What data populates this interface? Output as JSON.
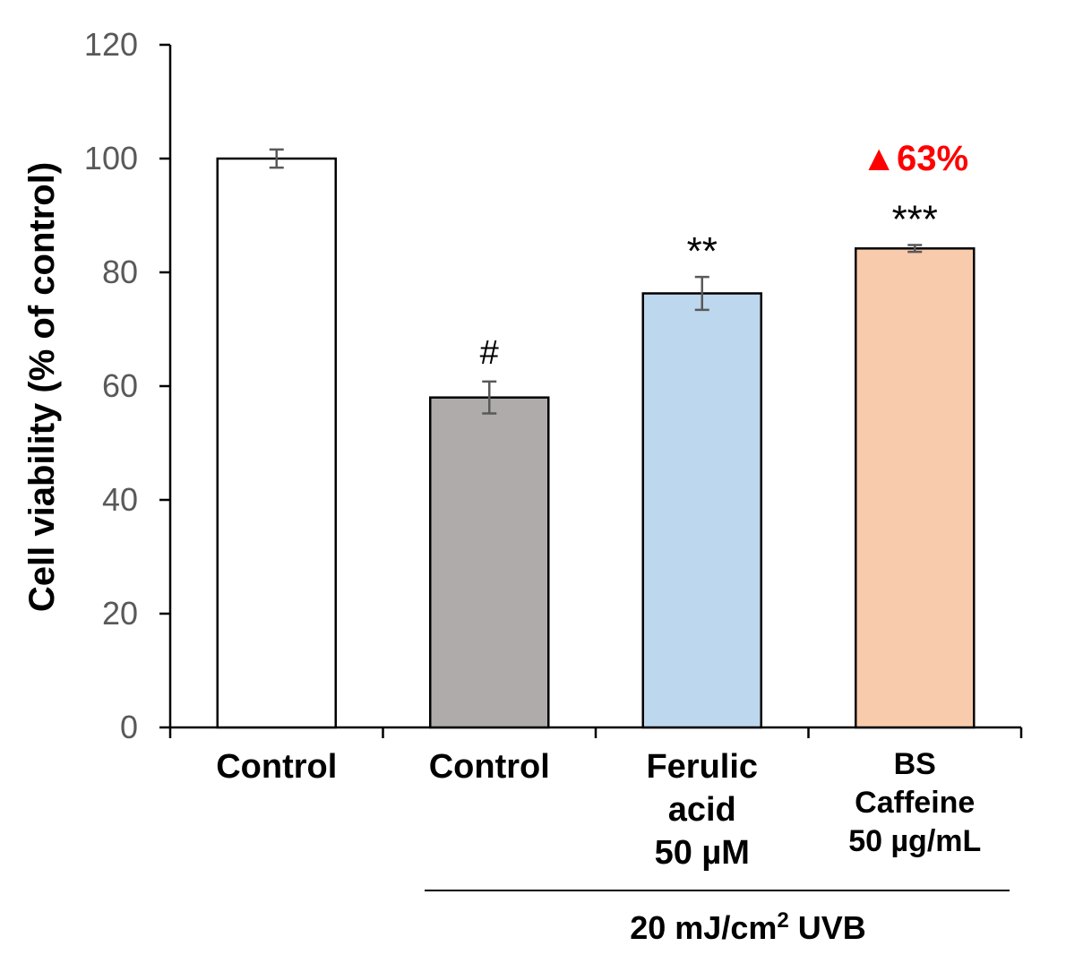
{
  "chart_data": {
    "type": "bar",
    "ylabel": "Cell viability (% of control)",
    "ylim": [
      0,
      120
    ],
    "yticks": [
      0,
      20,
      40,
      60,
      80,
      100,
      120
    ],
    "categories": [
      {
        "lines": [
          "Control"
        ],
        "value": 100,
        "error": 1.6,
        "fill": "#FFFFFF",
        "sig": ""
      },
      {
        "lines": [
          "Control"
        ],
        "value": 58,
        "error": 2.8,
        "fill": "#AFABAB",
        "sig": "#"
      },
      {
        "lines": [
          "Ferulic",
          "acid",
          "50 µM"
        ],
        "value": 76.3,
        "error": 2.9,
        "fill": "#BDD7EE",
        "sig": "**"
      },
      {
        "lines": [
          "BS",
          "Caffeine",
          "50 µg/mL"
        ],
        "value": 84.2,
        "error": 0.6,
        "fill": "#F8CBAD",
        "sig": "***"
      }
    ],
    "annotation": {
      "symbol": "▲",
      "text": "63%",
      "color": "#FF0000",
      "category_index": 3
    },
    "group_label": {
      "prefix": "20 mJ/cm",
      "superscript": "2",
      "suffix": " UVB",
      "span": [
        1,
        3
      ]
    }
  }
}
